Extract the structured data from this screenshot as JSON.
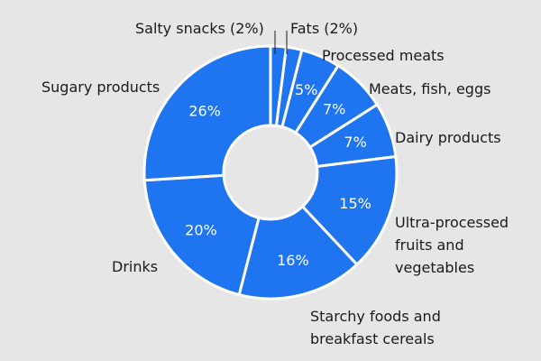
{
  "colors": {
    "background": "#e6e6e6",
    "slice_fill": "#1f74f0",
    "slice_border": "#ffffff",
    "text": "#1a1a1a",
    "percent_text": "#ffffff"
  },
  "chart_data": {
    "type": "pie",
    "title": "",
    "donut": true,
    "legend": "none",
    "slices": [
      {
        "label": "Salty snacks (2%)",
        "value": 2,
        "pct_text": ""
      },
      {
        "label": "Fats (2%)",
        "value": 2,
        "pct_text": ""
      },
      {
        "label": "Processed meats",
        "value": 5,
        "pct_text": "5%"
      },
      {
        "label": "Meats, fish, eggs",
        "value": 7,
        "pct_text": "7%"
      },
      {
        "label": "Dairy products",
        "value": 7,
        "pct_text": "7%"
      },
      {
        "label": "Ultra-processed fruits and vegetables",
        "value": 15,
        "pct_text": "15%"
      },
      {
        "label": "Starchy foods and breakfast cereals",
        "value": 16,
        "pct_text": "16%"
      },
      {
        "label": "Drinks",
        "value": 20,
        "pct_text": "20%"
      },
      {
        "label": "Sugary products",
        "value": 26,
        "pct_text": "26%"
      }
    ]
  }
}
